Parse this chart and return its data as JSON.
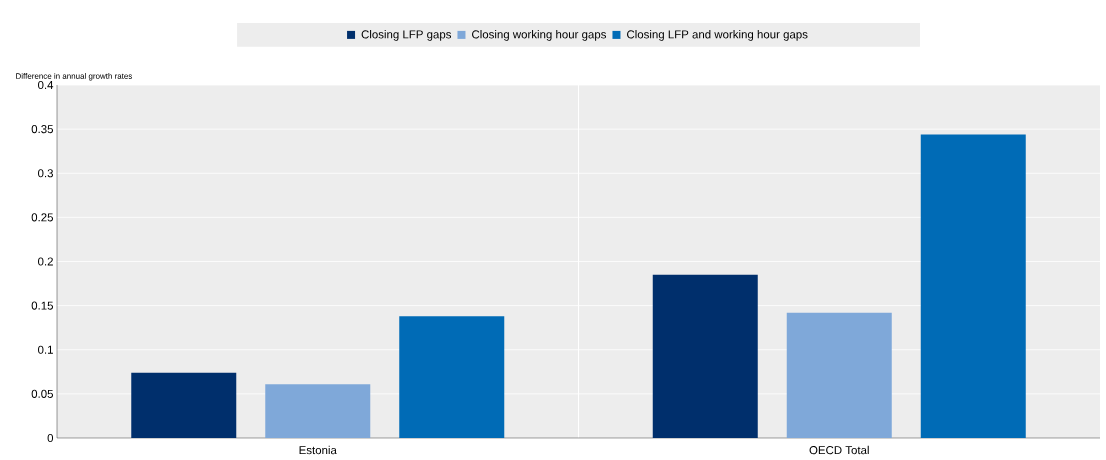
{
  "chart_data": {
    "type": "bar",
    "ylabel": "Difference in annual growth rates",
    "categories": [
      "Estonia",
      "OECD Total"
    ],
    "series": [
      {
        "name": "Closing LFP gaps",
        "color": "#002f6c",
        "values": [
          0.074,
          0.185
        ]
      },
      {
        "name": "Closing working hour gaps",
        "color": "#7fa8d9",
        "values": [
          0.061,
          0.142
        ]
      },
      {
        "name": "Closing LFP and working hour gaps",
        "color": "#006bb6",
        "values": [
          0.138,
          0.344
        ]
      }
    ],
    "ylim": [
      0,
      0.4
    ],
    "yticks": [
      0,
      0.05,
      0.1,
      0.15,
      0.2,
      0.25,
      0.3,
      0.35,
      0.4
    ],
    "grid": "y",
    "legend": "top"
  }
}
